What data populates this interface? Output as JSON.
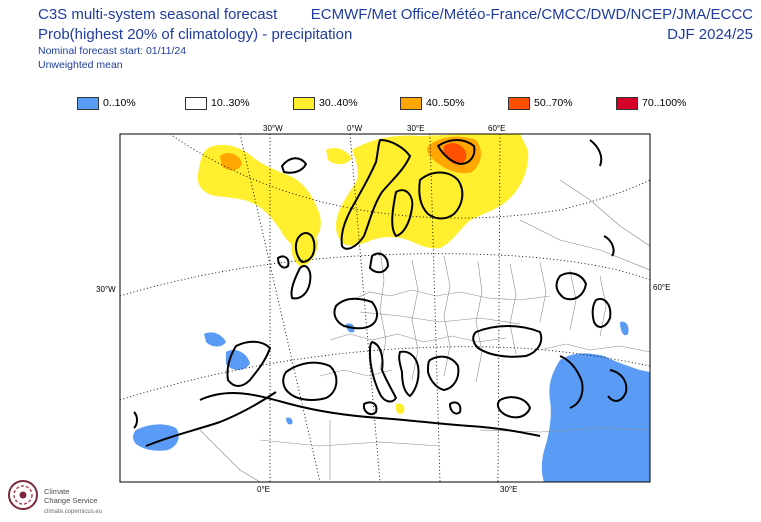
{
  "header": {
    "title": "C3S multi-system seasonal forecast",
    "subtitle": "Prob(highest 20% of climatology) - precipitation",
    "start_date": "Nominal forecast start: 01/11/24",
    "weighting": "Unweighted mean",
    "systems": "ECMWF/Met Office/Météo-France/CMCC/DWD/NCEP/JMA/ECCC",
    "season": "DJF 2024/25"
  },
  "legend": [
    {
      "label": "0..10%",
      "color": "#5a9cf5"
    },
    {
      "label": "10..30%",
      "color": "#ffffff"
    },
    {
      "label": "30..40%",
      "color": "#ffef2e"
    },
    {
      "label": "40..50%",
      "color": "#ffa600"
    },
    {
      "label": "50..70%",
      "color": "#ff4f00"
    },
    {
      "label": "70..100%",
      "color": "#d4002a"
    }
  ],
  "map": {
    "labels": {
      "top_30w": "30°W",
      "top_0w": "0°W",
      "top_30e": "30°E",
      "top_60e": "60°E",
      "left_30w": "30°W",
      "right_60e": "60°E",
      "bottom_0e": "0°E",
      "bottom_30e": "30°E"
    }
  },
  "logo": {
    "line1": "Climate",
    "line2": "Change Service",
    "url": "climate.copernicus.eu",
    "icon": "climate-change-service-icon"
  }
}
